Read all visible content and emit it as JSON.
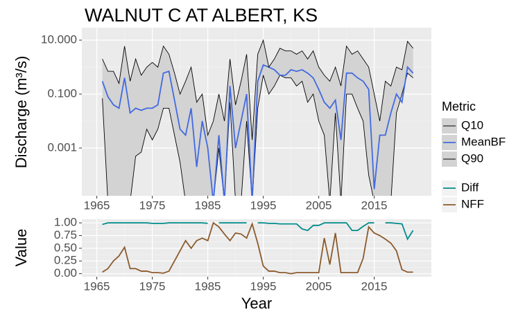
{
  "chart_data": [
    {
      "type": "line",
      "title": "WALNUT C AT ALBERT, KS",
      "y_label": "Discharge (m³/s)",
      "log_y": true,
      "grid": true,
      "band_color": "#d3d3d3",
      "legend_title": "Metric",
      "legend_position": "right",
      "x": [
        1966,
        1967,
        1968,
        1969,
        1970,
        1971,
        1972,
        1973,
        1974,
        1975,
        1976,
        1977,
        1978,
        1979,
        1980,
        1981,
        1982,
        1983,
        1984,
        1985,
        1986,
        1987,
        1988,
        1989,
        1990,
        1991,
        1992,
        1993,
        1994,
        1995,
        1996,
        1997,
        1998,
        1999,
        2000,
        2001,
        2002,
        2003,
        2004,
        2005,
        2006,
        2007,
        2008,
        2009,
        2010,
        2011,
        2012,
        2013,
        2014,
        2015,
        2016,
        2017,
        2018,
        2019,
        2020,
        2021,
        2022
      ],
      "xlim": [
        1962.3,
        2025.3
      ],
      "xticks": [
        1965,
        1975,
        1985,
        1995,
        2005,
        2015
      ],
      "ylim": [
        1.7e-05,
        29
      ],
      "yticks": [
        {
          "value": 0.001,
          "label": "0.001"
        },
        {
          "value": 0.1,
          "label": "0.100"
        },
        {
          "value": 10,
          "label": "10.000"
        }
      ],
      "series": [
        {
          "name": "Q10",
          "color": "#000000",
          "band": true,
          "values": [
            0.07,
            1e-05,
            1e-05,
            1e-05,
            1e-05,
            1e-05,
            0.0005,
            0.0007,
            0.005,
            0.002,
            0.005,
            0.03,
            0.03,
            0.003,
            0.0003,
            1e-05,
            1e-05,
            1e-05,
            1e-05,
            1e-05,
            1e-05,
            0.001,
            1e-05,
            0.05,
            1e-05,
            1e-05,
            0.01,
            1e-05,
            0.03,
            0.5,
            0.1,
            0.2,
            0.5,
            0.4,
            0.4,
            0.2,
            0.3,
            0.05,
            0.1,
            0.01,
            0.003,
            1e-05,
            0.02,
            1e-05,
            0.1,
            0.1,
            0.03,
            0.01,
            0.0001,
            1e-05,
            1e-05,
            1e-05,
            1e-05,
            0.02,
            0.1,
            0.6,
            0.4
          ]
        },
        {
          "name": "MeanBF",
          "color": "#4169e1",
          "values": [
            0.3,
            0.08,
            0.04,
            0.03,
            0.4,
            0.02,
            0.03,
            0.025,
            0.03,
            0.03,
            0.04,
            0.6,
            0.7,
            0.06,
            0.005,
            0.003,
            0.03,
            0.0002,
            0.01,
            0.001,
            1e-05,
            0.003,
            1e-05,
            0.2,
            0.001,
            0.01,
            0.1,
            1e-05,
            0.3,
            1.2,
            1,
            0.8,
            0.5,
            0.5,
            0.8,
            0.7,
            0.8,
            0.6,
            0.4,
            0.15,
            0.05,
            0.03,
            0.06,
            0.002,
            0.6,
            0.6,
            0.4,
            0.3,
            0.15,
            3e-05,
            0.003,
            0.003,
            0.02,
            0.1,
            0.05,
            1,
            0.6
          ]
        },
        {
          "name": "Q90",
          "color": "#000000",
          "band": true,
          "values": [
            2,
            0.7,
            0.7,
            0.25,
            6,
            0.3,
            2,
            0.5,
            1,
            1.5,
            1,
            6,
            3,
            0.6,
            0.1,
            0.3,
            1,
            0.05,
            0.1,
            0.003,
            0.01,
            0.1,
            0.01,
            2,
            0.04,
            0.3,
            3,
            0.002,
            3,
            10,
            1,
            2,
            5,
            4,
            4,
            3,
            4,
            2,
            4,
            1,
            0.5,
            0.3,
            1,
            0.2,
            6,
            3,
            4,
            2,
            1,
            0.1,
            0.01,
            0.3,
            0.2,
            1,
            0.8,
            9,
            5
          ]
        }
      ]
    },
    {
      "type": "line",
      "x_label": "Year",
      "y_label": "Value",
      "grid": true,
      "legend_position": "right",
      "x": [
        1966,
        1967,
        1968,
        1969,
        1970,
        1971,
        1972,
        1973,
        1974,
        1975,
        1976,
        1977,
        1978,
        1979,
        1980,
        1981,
        1982,
        1983,
        1984,
        1985,
        1986,
        1987,
        1988,
        1989,
        1990,
        1991,
        1992,
        1993,
        1994,
        1995,
        1996,
        1997,
        1998,
        1999,
        2000,
        2001,
        2002,
        2003,
        2004,
        2005,
        2006,
        2007,
        2008,
        2009,
        2010,
        2011,
        2012,
        2013,
        2014,
        2015,
        2016,
        2017,
        2018,
        2019,
        2020,
        2021,
        2022
      ],
      "xlim": [
        1962.3,
        2025.3
      ],
      "xticks": [
        1965,
        1975,
        1985,
        1995,
        2005,
        2015
      ],
      "ylim": [
        -0.06,
        1.07
      ],
      "yticks": [
        {
          "value": 0,
          "label": "0.00"
        },
        {
          "value": 0.25,
          "label": "0.25"
        },
        {
          "value": 0.5,
          "label": "0.50"
        },
        {
          "value": 0.75,
          "label": "0.75"
        },
        {
          "value": 1,
          "label": "1.00"
        }
      ],
      "series": [
        {
          "name": "Diff",
          "color": "#008b8b",
          "values": [
            0.97,
            1,
            1,
            1,
            1,
            1,
            1,
            1,
            1,
            0.99,
            0.99,
            0.99,
            1,
            1,
            1,
            1,
            1,
            1,
            1,
            0.99,
            null,
            1,
            1,
            1,
            1,
            1,
            1,
            null,
            1,
            1,
            0.99,
            0.99,
            0.98,
            0.98,
            0.98,
            0.98,
            0.88,
            0.85,
            0.95,
            0.95,
            1,
            1,
            1,
            1,
            1,
            0.85,
            0.85,
            0.93,
            1,
            1,
            null,
            1,
            1,
            0.99,
            0.98,
            0.68,
            0.85
          ]
        },
        {
          "name": "NFF",
          "color": "#8b5a2b",
          "values": [
            0.03,
            0.1,
            0.25,
            0.35,
            0.52,
            0.1,
            0.1,
            0.05,
            0.05,
            0.02,
            0.02,
            0.01,
            0.05,
            0.25,
            0.45,
            0.65,
            0.5,
            0.65,
            0.7,
            0.65,
            1,
            0.92,
            0.78,
            0.65,
            0.8,
            0.78,
            0.7,
            0.98,
            0.6,
            0.15,
            0.05,
            0.05,
            0.02,
            0.02,
            0,
            0.02,
            0.02,
            0.02,
            0.02,
            0.02,
            0.7,
            0.18,
            0.8,
            0.02,
            0.02,
            0.02,
            0.02,
            0.3,
            0.92,
            0.8,
            0.75,
            0.68,
            0.6,
            0.45,
            0.08,
            0.03,
            0.03
          ]
        }
      ]
    }
  ]
}
